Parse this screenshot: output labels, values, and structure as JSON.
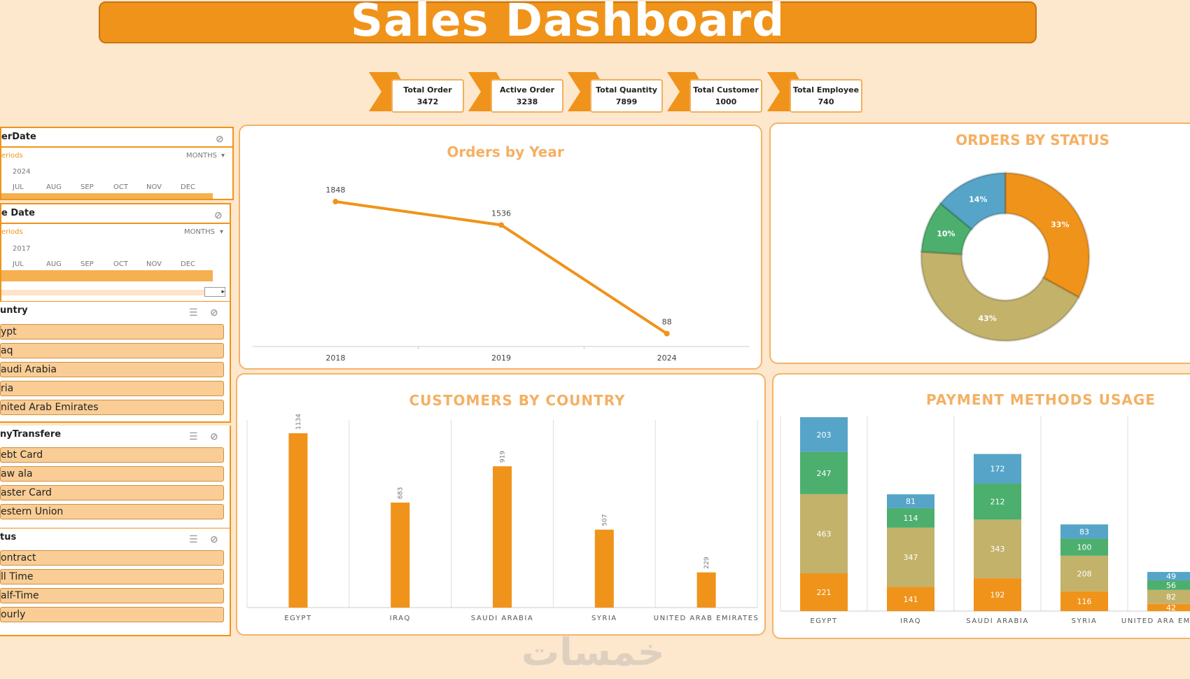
{
  "title": "Sales Dashboard",
  "kpis": [
    {
      "label": "Total Order",
      "value": "3472"
    },
    {
      "label": "Active Order",
      "value": "3238"
    },
    {
      "label": "Total Quantity",
      "value": "7899"
    },
    {
      "label": "Total Customer",
      "value": "1000"
    },
    {
      "label": "Total Employee",
      "value": "740"
    }
  ],
  "slicers": {
    "order_date": {
      "title": "erDate",
      "periods": "eriods",
      "months_label": "MONTHS",
      "year": "2024",
      "months": [
        "JUL",
        "AUG",
        "SEP",
        "OCT",
        "NOV",
        "DEC"
      ]
    },
    "ship_date": {
      "title": "e Date",
      "periods": "eriods",
      "months_label": "MONTHS",
      "year": "2017",
      "months": [
        "JUL",
        "AUG",
        "SEP",
        "OCT",
        "NOV",
        "DEC"
      ]
    },
    "country": {
      "title": "untry",
      "items": [
        "ypt",
        "aq",
        "audi Arabia",
        "ria",
        "nited Arab Emirates"
      ]
    },
    "payment": {
      "title": "nyTransfere",
      "items": [
        "ebt Card",
        "aw ala",
        "aster Card",
        "estern Union"
      ]
    },
    "status": {
      "title": "tus",
      "items": [
        "ontract",
        "ll Time",
        "alf-Time",
        "ourly"
      ]
    }
  },
  "colors": {
    "orange": "#f0931a",
    "olive": "#c3b26a",
    "green": "#4caf6e",
    "blue": "#56a5c8",
    "title_text": "#f4b063"
  },
  "chart_data": [
    {
      "type": "line",
      "title": "Orders by Year",
      "categories": [
        "2018",
        "2019",
        "2024"
      ],
      "values": [
        1848,
        1536,
        88
      ],
      "data_labels": [
        "1848",
        "1536",
        "88"
      ],
      "ylim": [
        0,
        2000
      ]
    },
    {
      "type": "pie",
      "title": "ORDERS BY STATUS",
      "donut": true,
      "slices": [
        {
          "label": "33%",
          "value": 33,
          "color": "#f0931a"
        },
        {
          "label": "43%",
          "value": 43,
          "color": "#c3b26a"
        },
        {
          "label": "10%",
          "value": 10,
          "color": "#4caf6e"
        },
        {
          "label": "14%",
          "value": 14,
          "color": "#56a5c8"
        }
      ]
    },
    {
      "type": "bar",
      "title": "CUSTOMERS BY COUNTRY",
      "categories": [
        "EGYPT",
        "IRAQ",
        "SAUDI ARABIA",
        "SYRIA",
        "UNITED ARAB EMIRATES"
      ],
      "values": [
        1134,
        683,
        919,
        507,
        229
      ],
      "ylim": [
        0,
        1200
      ]
    },
    {
      "type": "bar",
      "stacked": true,
      "title": "PAYMENT METHODS USAGE",
      "categories": [
        "EGYPT",
        "IRAQ",
        "SAUDI ARABIA",
        "SYRIA",
        "UNITED ARA EMIRATES"
      ],
      "series": [
        {
          "values": [
            221,
            141,
            192,
            116,
            42
          ],
          "color": "#f0931a"
        },
        {
          "values": [
            463,
            347,
            343,
            208,
            82
          ],
          "color": "#c3b26a"
        },
        {
          "values": [
            247,
            114,
            212,
            100,
            56
          ],
          "color": "#4caf6e"
        },
        {
          "values": [
            203,
            81,
            172,
            83,
            49
          ],
          "color": "#56a5c8"
        }
      ],
      "ylim": [
        0,
        1134
      ]
    }
  ]
}
